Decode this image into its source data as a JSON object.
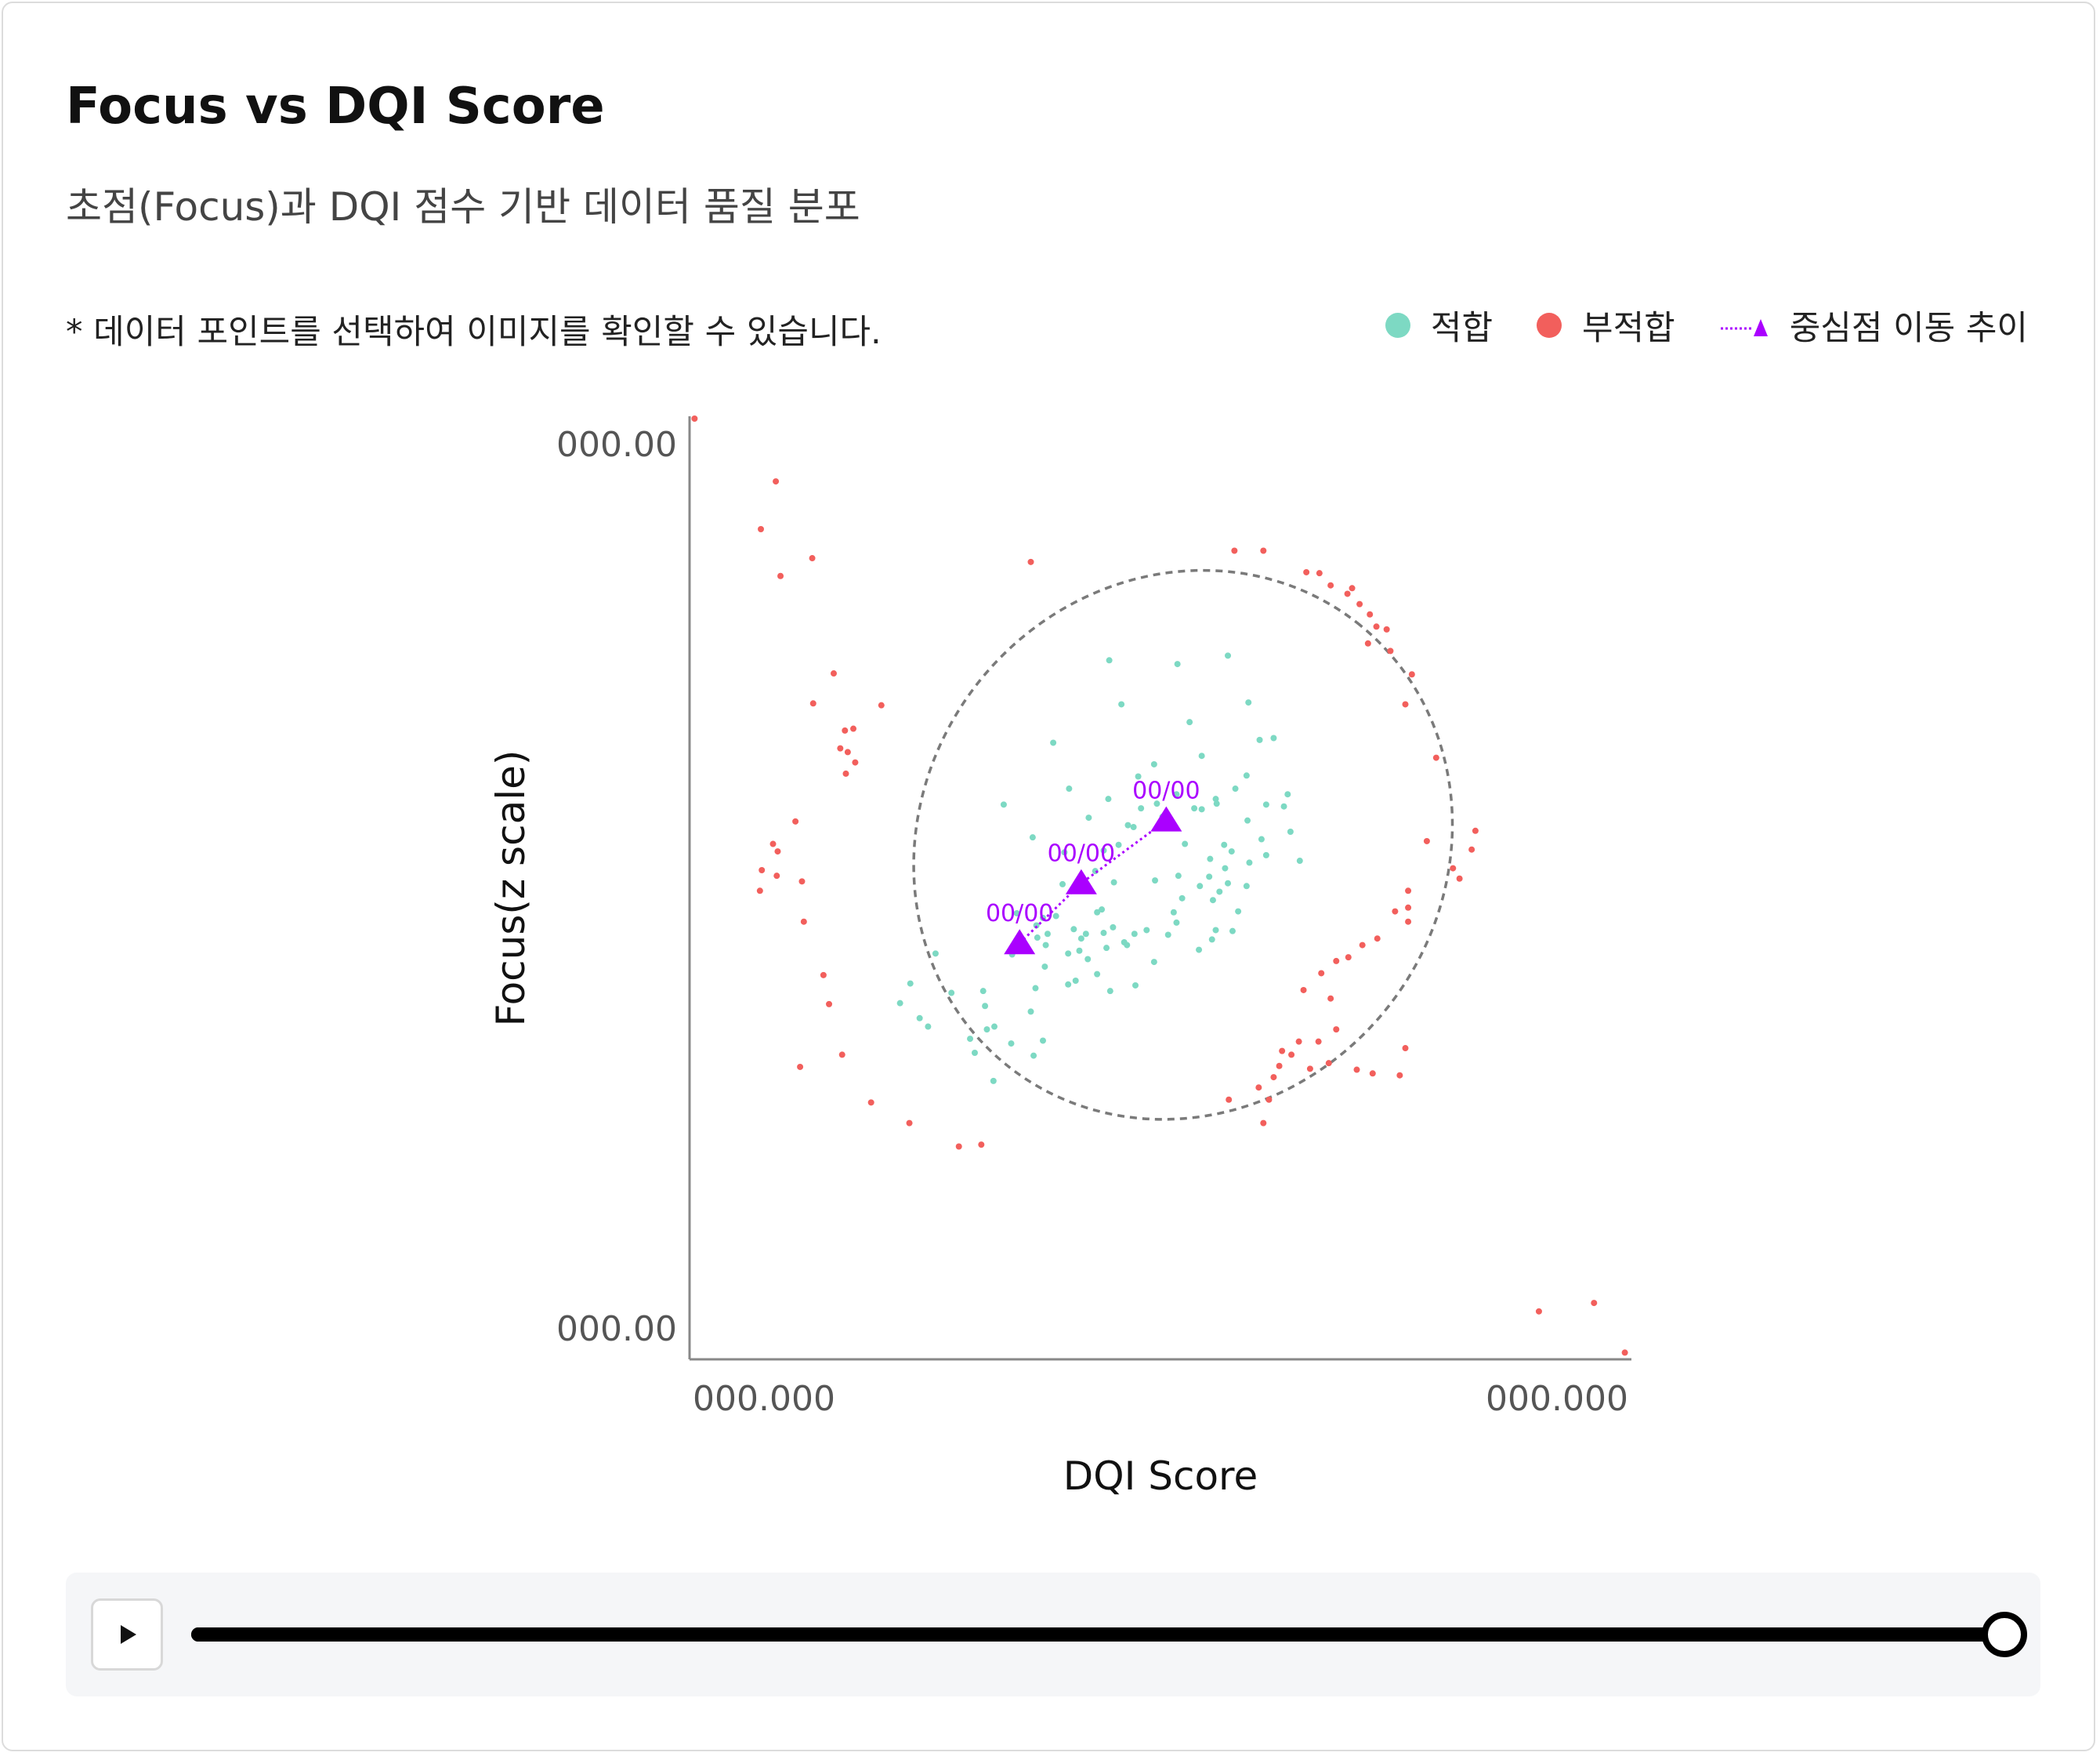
{
  "header": {
    "title": "Focus vs DQI Score",
    "subtitle": "초점(Focus)과 DQI 점수 기반 데이터 품질 분포"
  },
  "note": "* 데이터 포인트를 선택하여 이미지를 확인할 수 있습니다.",
  "legend": {
    "fit": "적합",
    "unfit": "부적합",
    "trend": "중심점 이동 추이"
  },
  "colors": {
    "fit": "#7dd9c3",
    "unfit": "#f25f5c",
    "trend": "#aa00ff",
    "ellipse": "#7a7a7a",
    "axis": "#888888"
  },
  "chart_data": {
    "type": "scatter",
    "title": "Focus vs DQI Score",
    "subtitle": "초점(Focus)과 DQI 점수 기반 데이터 품질 분포",
    "xlabel": "DQI Score",
    "ylabel": "Focus(z scale)",
    "x_tick_labels": [
      "000.000",
      "000.000"
    ],
    "y_tick_labels": [
      "000.00",
      "000.00"
    ],
    "xlim": [
      0,
      100
    ],
    "ylim": [
      0,
      100
    ],
    "legend_position": "top-right",
    "grid": false,
    "series": [
      {
        "name": "적합",
        "color": "#7dd9c3",
        "points": [
          [
            38.6,
            65.4
          ],
          [
            44.6,
            74.2
          ],
          [
            45.9,
            69.5
          ],
          [
            51.9,
            73.8
          ],
          [
            57.3,
            74.7
          ],
          [
            59.5,
            69.7
          ],
          [
            49.4,
            63.1
          ],
          [
            54.5,
            64.0
          ],
          [
            53.2,
            67.6
          ],
          [
            60.7,
            65.7
          ],
          [
            59.3,
            61.9
          ],
          [
            54.5,
            58.3
          ],
          [
            48.0,
            58.4
          ],
          [
            47.7,
            61.8
          ],
          [
            36.4,
            55.3
          ],
          [
            33.3,
            58.8
          ],
          [
            45.6,
            54.5
          ],
          [
            40.3,
            60.5
          ],
          [
            51.8,
            59.9
          ],
          [
            62.2,
            65.9
          ],
          [
            56.1,
            58.9
          ],
          [
            58.1,
            60.5
          ],
          [
            61.4,
            58.8
          ],
          [
            63.3,
            58.6
          ],
          [
            59.4,
            57.1
          ],
          [
            56.9,
            54.5
          ],
          [
            50.3,
            57.5
          ],
          [
            44.5,
            59.4
          ],
          [
            42.4,
            57.4
          ],
          [
            44.0,
            53.9
          ],
          [
            43.1,
            51.7
          ],
          [
            45.1,
            50.5
          ],
          [
            47.2,
            56.4
          ],
          [
            52.7,
            54.6
          ],
          [
            52.0,
            51.2
          ],
          [
            55.4,
            53.0
          ],
          [
            59.6,
            52.6
          ],
          [
            60.9,
            55.1
          ],
          [
            64.0,
            55.9
          ],
          [
            61.4,
            53.4
          ],
          [
            63.7,
            59.9
          ],
          [
            65.0,
            52.8
          ],
          [
            57.0,
            52.0
          ],
          [
            56.0,
            59.4
          ],
          [
            53.7,
            58.4
          ],
          [
            49.7,
            58.9
          ],
          [
            46.6,
            56.6
          ],
          [
            39.8,
            53.7
          ],
          [
            34.7,
            47.2
          ],
          [
            43.3,
            47.3
          ],
          [
            41.3,
            50.3
          ],
          [
            39.6,
            50.3
          ],
          [
            38.9,
            46.9
          ],
          [
            37.5,
            46.7
          ],
          [
            36.8,
            45.9
          ],
          [
            42.1,
            45.0
          ],
          [
            48.6,
            45.4
          ],
          [
            46.2,
            44.1
          ],
          [
            50.9,
            44.9
          ],
          [
            44.3,
            43.5
          ],
          [
            40.8,
            45.5
          ],
          [
            44.7,
            38.9
          ],
          [
            41.4,
            43.2
          ],
          [
            44.0,
            45.1
          ],
          [
            34.2,
            42.8
          ],
          [
            36.9,
            44.6
          ],
          [
            37.8,
            43.8
          ],
          [
            41.0,
            40.0
          ],
          [
            37.7,
            41.5
          ],
          [
            36.7,
            39.2
          ],
          [
            40.2,
            39.6
          ],
          [
            43.3,
            40.7
          ],
          [
            46.5,
            43.8
          ],
          [
            47.4,
            39.5
          ],
          [
            49.4,
            42.0
          ],
          [
            51.8,
            46.2
          ],
          [
            49.5,
            50.7
          ],
          [
            52.4,
            48.8
          ],
          [
            51.5,
            47.3
          ],
          [
            54.3,
            50.1
          ],
          [
            55.3,
            51.1
          ],
          [
            55.7,
            48.6
          ],
          [
            57.3,
            50.4
          ],
          [
            59.3,
            50.1
          ],
          [
            56.4,
            49.5
          ],
          [
            57.7,
            53.8
          ],
          [
            58.4,
            47.4
          ],
          [
            56.0,
            45.4
          ],
          [
            54.2,
            43.3
          ],
          [
            57.8,
            45.3
          ],
          [
            55.6,
            44.4
          ],
          [
            41.6,
            44.5
          ],
          [
            43.8,
            47.6
          ],
          [
            42.3,
            42.3
          ],
          [
            40.2,
            42.9
          ],
          [
            45.0,
            45.7
          ],
          [
            47.3,
            45.0
          ],
          [
            38.0,
            45.0
          ],
          [
            31.1,
            38.9
          ],
          [
            27.7,
            38.7
          ],
          [
            26.0,
            42.9
          ],
          [
            23.3,
            39.7
          ],
          [
            22.2,
            37.6
          ],
          [
            24.3,
            36.0
          ],
          [
            31.5,
            34.8
          ],
          [
            25.2,
            35.1
          ],
          [
            29.7,
            33.8
          ],
          [
            30.2,
            32.3
          ],
          [
            32.3,
            35.1
          ],
          [
            32.2,
            29.3
          ],
          [
            31.3,
            37.3
          ],
          [
            34.1,
            33.3
          ],
          [
            36.2,
            36.7
          ],
          [
            37.5,
            33.6
          ],
          [
            36.5,
            32.0
          ]
        ]
      },
      {
        "name": "부적합",
        "color": "#f25f5c",
        "points": [
          [
            0.2,
            100.0
          ],
          [
            8.9,
            93.3
          ],
          [
            7.3,
            88.2
          ],
          [
            12.8,
            85.1
          ],
          [
            9.4,
            83.2
          ],
          [
            36.2,
            84.7
          ],
          [
            58.0,
            85.9
          ],
          [
            61.1,
            85.9
          ],
          [
            65.7,
            83.6
          ],
          [
            67.1,
            83.5
          ],
          [
            68.3,
            82.2
          ],
          [
            70.6,
            81.9
          ],
          [
            70.1,
            81.3
          ],
          [
            71.4,
            80.2
          ],
          [
            72.5,
            79.1
          ],
          [
            73.2,
            77.8
          ],
          [
            74.3,
            77.5
          ],
          [
            72.3,
            76.0
          ],
          [
            74.7,
            75.2
          ],
          [
            77.0,
            72.7
          ],
          [
            76.3,
            69.5
          ],
          [
            79.6,
            63.8
          ],
          [
            83.8,
            56.0
          ],
          [
            78.6,
            54.9
          ],
          [
            83.4,
            54.0
          ],
          [
            81.4,
            52.0
          ],
          [
            82.1,
            50.9
          ],
          [
            76.6,
            49.6
          ],
          [
            76.6,
            47.8
          ],
          [
            75.2,
            47.4
          ],
          [
            76.6,
            46.3
          ],
          [
            73.3,
            44.5
          ],
          [
            71.7,
            43.8
          ],
          [
            70.2,
            42.5
          ],
          [
            68.9,
            42.1
          ],
          [
            67.3,
            40.8
          ],
          [
            65.4,
            39.0
          ],
          [
            68.3,
            38.1
          ],
          [
            68.9,
            34.8
          ],
          [
            67.0,
            33.5
          ],
          [
            64.9,
            33.5
          ],
          [
            63.1,
            32.5
          ],
          [
            76.3,
            32.8
          ],
          [
            68.1,
            31.2
          ],
          [
            64.1,
            32.1
          ],
          [
            62.8,
            30.9
          ],
          [
            66.1,
            30.6
          ],
          [
            72.8,
            30.1
          ],
          [
            75.7,
            29.9
          ],
          [
            62.2,
            29.7
          ],
          [
            60.6,
            28.6
          ],
          [
            57.4,
            27.3
          ],
          [
            61.7,
            27.3
          ],
          [
            61.1,
            24.8
          ],
          [
            71.1,
            30.5
          ],
          [
            15.1,
            72.8
          ],
          [
            12.9,
            69.6
          ],
          [
            16.3,
            66.7
          ],
          [
            17.2,
            66.9
          ],
          [
            20.2,
            69.4
          ],
          [
            15.8,
            64.8
          ],
          [
            16.6,
            64.4
          ],
          [
            17.4,
            63.3
          ],
          [
            16.4,
            62.1
          ],
          [
            11.0,
            57.0
          ],
          [
            8.6,
            54.6
          ],
          [
            9.1,
            53.8
          ],
          [
            7.4,
            51.8
          ],
          [
            9.0,
            51.2
          ],
          [
            7.2,
            49.6
          ],
          [
            11.7,
            50.6
          ],
          [
            11.9,
            46.3
          ],
          [
            14.0,
            40.6
          ],
          [
            14.6,
            37.5
          ],
          [
            16.0,
            32.1
          ],
          [
            11.5,
            30.8
          ],
          [
            19.1,
            27.0
          ],
          [
            23.2,
            24.8
          ],
          [
            28.5,
            22.3
          ],
          [
            30.9,
            22.5
          ],
          [
            90.6,
            4.7
          ],
          [
            96.5,
            5.6
          ],
          [
            99.8,
            0.3
          ]
        ]
      },
      {
        "name": "중심점 이동 추이",
        "color": "#aa00ff",
        "type": "line",
        "points": [
          [
            35.0,
            44.0
          ],
          [
            41.6,
            50.4
          ],
          [
            50.7,
            57.1
          ]
        ],
        "labels": [
          "00/00",
          "00/00",
          "00/00"
        ]
      }
    ],
    "ellipse": {
      "cx": 52.5,
      "cy": 54.5,
      "rx": 30.2,
      "ry": 27.9,
      "rotation_deg": -52
    }
  },
  "player": {
    "progress": 1.0
  }
}
